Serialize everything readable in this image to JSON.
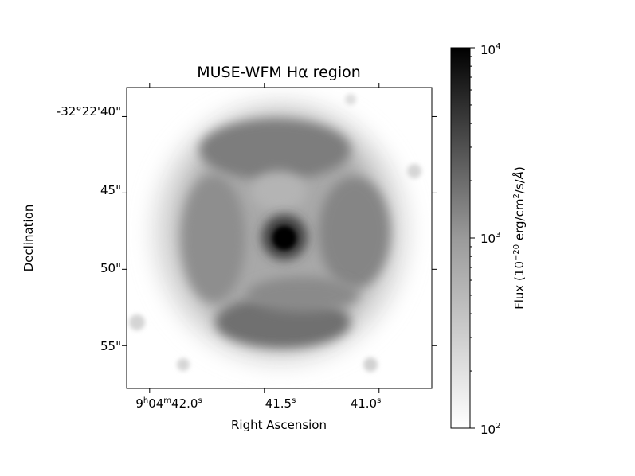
{
  "chart_data": {
    "type": "heatmap",
    "title": "MUSE-WFM Hα region",
    "xlabel": "Right Ascension",
    "ylabel": "Declination",
    "x_ticks": [
      {
        "label": "9h04m42.0s",
        "value": 42.0
      },
      {
        "label": "41.5s",
        "value": 41.5
      },
      {
        "label": "41.0s",
        "value": 41.0
      }
    ],
    "y_ticks": [
      {
        "label": "-32°22'40\"",
        "value": 40
      },
      {
        "label": "45\"",
        "value": 45
      },
      {
        "label": "50\"",
        "value": 50
      },
      {
        "label": "55\"",
        "value": 55
      }
    ],
    "xlim": [
      42.1,
      40.77
    ],
    "ylim": [
      38.1,
      57.8
    ],
    "colorbar": {
      "label": "Flux (10⁻²⁰ erg/cm²/s/Å)",
      "scale": "log",
      "range": [
        100,
        10000
      ],
      "ticks": [
        {
          "label": "10²",
          "value": 100
        },
        {
          "label": "10³",
          "value": 1000
        },
        {
          "label": "10⁴",
          "value": 10000
        }
      ],
      "colormap": "gray_r"
    },
    "features": [
      {
        "name": "central source",
        "ra_s": 41.44,
        "dec_arcsec": 48.1,
        "flux": 10000
      }
    ],
    "grid": false
  }
}
